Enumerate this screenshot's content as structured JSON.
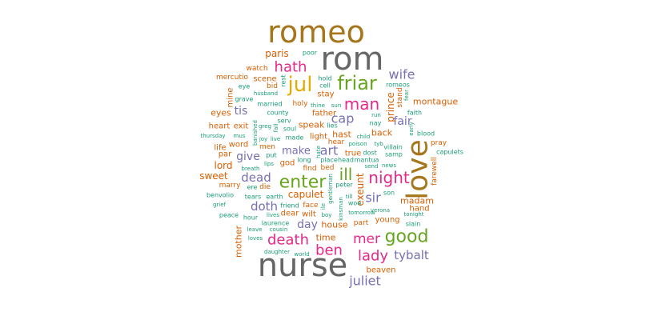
{
  "wordcloud": {
    "words": [
      {
        "text": "romeo",
        "color": "#a6761d"
      },
      {
        "text": "rom",
        "color": "#666666"
      },
      {
        "text": "nurse",
        "color": "#666666"
      },
      {
        "text": "love",
        "color": "#a6761d"
      },
      {
        "text": "jul",
        "color": "#e6ab02"
      },
      {
        "text": "friar",
        "color": "#66a61e"
      },
      {
        "text": "enter",
        "color": "#66a61e"
      },
      {
        "text": "good",
        "color": "#66a61e"
      },
      {
        "text": "death",
        "color": "#e7298a"
      },
      {
        "text": "man",
        "color": "#e7298a"
      },
      {
        "text": "hath",
        "color": "#e7298a"
      },
      {
        "text": "night",
        "color": "#e7298a"
      },
      {
        "text": "lady",
        "color": "#e7298a"
      },
      {
        "text": "ben",
        "color": "#e7298a"
      },
      {
        "text": "ill",
        "color": "#66a61e"
      },
      {
        "text": "mer",
        "color": "#e7298a"
      },
      {
        "text": "wife",
        "color": "#7570b3"
      },
      {
        "text": "juliet",
        "color": "#7570b3"
      },
      {
        "text": "tybalt",
        "color": "#7570b3"
      },
      {
        "text": "cap",
        "color": "#7570b3"
      },
      {
        "text": "art",
        "color": "#7570b3"
      },
      {
        "text": "sir",
        "color": "#7570b3"
      },
      {
        "text": "dead",
        "color": "#7570b3"
      },
      {
        "text": "give",
        "color": "#7570b3"
      },
      {
        "text": "doth",
        "color": "#7570b3"
      },
      {
        "text": "day",
        "color": "#7570b3"
      },
      {
        "text": "fair",
        "color": "#7570b3"
      },
      {
        "text": "tis",
        "color": "#7570b3"
      },
      {
        "text": "make",
        "color": "#7570b3"
      },
      {
        "text": "exeunt",
        "color": "#d95f02"
      },
      {
        "text": "prince",
        "color": "#d95f02"
      },
      {
        "text": "paris",
        "color": "#d95f02"
      },
      {
        "text": "capulet",
        "color": "#d95f02"
      },
      {
        "text": "montague",
        "color": "#d95f02"
      },
      {
        "text": "sweet",
        "color": "#d95f02"
      },
      {
        "text": "lord",
        "color": "#d95f02"
      },
      {
        "text": "eyes",
        "color": "#d95f02"
      },
      {
        "text": "scene",
        "color": "#d95f02"
      },
      {
        "text": "time",
        "color": "#d95f02"
      },
      {
        "text": "madam",
        "color": "#d95f02"
      },
      {
        "text": "mother",
        "color": "#d95f02"
      },
      {
        "text": "house",
        "color": "#d95f02"
      },
      {
        "text": "beaven",
        "color": "#d95f02"
      },
      {
        "text": "hand",
        "color": "#d95f02"
      },
      {
        "text": "young",
        "color": "#d95f02"
      },
      {
        "text": "back",
        "color": "#d95f02"
      },
      {
        "text": "true",
        "color": "#d95f02"
      },
      {
        "text": "hast",
        "color": "#d95f02"
      },
      {
        "text": "light",
        "color": "#d95f02"
      },
      {
        "text": "speak",
        "color": "#d95f02"
      },
      {
        "text": "father",
        "color": "#d95f02"
      },
      {
        "text": "stay",
        "color": "#d95f02"
      },
      {
        "text": "heart",
        "color": "#d95f02"
      },
      {
        "text": "exit",
        "color": "#d95f02"
      },
      {
        "text": "word",
        "color": "#d95f02"
      },
      {
        "text": "life",
        "color": "#d95f02"
      },
      {
        "text": "par",
        "color": "#d95f02"
      },
      {
        "text": "marry",
        "color": "#d95f02"
      },
      {
        "text": "watch",
        "color": "#d95f02"
      },
      {
        "text": "mercutio",
        "color": "#d95f02"
      },
      {
        "text": "mine",
        "color": "#d95f02"
      },
      {
        "text": "holy",
        "color": "#d95f02"
      },
      {
        "text": "bid",
        "color": "#d95f02"
      },
      {
        "text": "find",
        "color": "#d95f02"
      },
      {
        "text": "bed",
        "color": "#d95f02"
      },
      {
        "text": "god",
        "color": "#d95f02"
      },
      {
        "text": "die",
        "color": "#d95f02"
      },
      {
        "text": "wilt",
        "color": "#d95f02"
      },
      {
        "text": "face",
        "color": "#d95f02"
      },
      {
        "text": "dear",
        "color": "#d95f02"
      },
      {
        "text": "part",
        "color": "#d95f02"
      },
      {
        "text": "pray",
        "color": "#d95f02"
      },
      {
        "text": "farewell",
        "color": "#d95f02"
      },
      {
        "text": "stand",
        "color": "#d95f02"
      },
      {
        "text": "men",
        "color": "#d95f02"
      },
      {
        "text": "hear",
        "color": "#d95f02"
      },
      {
        "text": "poor",
        "color": "#1b9e77"
      },
      {
        "text": "rest",
        "color": "#1b9e77"
      },
      {
        "text": "hold",
        "color": "#1b9e77"
      },
      {
        "text": "cell",
        "color": "#1b9e77"
      },
      {
        "text": "romeos",
        "color": "#1b9e77"
      },
      {
        "text": "fear",
        "color": "#1b9e77"
      },
      {
        "text": "eye",
        "color": "#1b9e77"
      },
      {
        "text": "husband",
        "color": "#1b9e77"
      },
      {
        "text": "grave",
        "color": "#1b9e77"
      },
      {
        "text": "married",
        "color": "#1b9e77"
      },
      {
        "text": "thine",
        "color": "#1b9e77"
      },
      {
        "text": "sun",
        "color": "#1b9e77"
      },
      {
        "text": "county",
        "color": "#1b9e77"
      },
      {
        "text": "faith",
        "color": "#1b9e77"
      },
      {
        "text": "run",
        "color": "#1b9e77"
      },
      {
        "text": "nay",
        "color": "#1b9e77"
      },
      {
        "text": "serv",
        "color": "#1b9e77"
      },
      {
        "text": "greg",
        "color": "#1b9e77"
      },
      {
        "text": "fall",
        "color": "#1b9e77"
      },
      {
        "text": "soul",
        "color": "#1b9e77"
      },
      {
        "text": "banished",
        "color": "#1b9e77"
      },
      {
        "text": "lies",
        "color": "#1b9e77"
      },
      {
        "text": "early",
        "color": "#1b9e77"
      },
      {
        "text": "blood",
        "color": "#1b9e77"
      },
      {
        "text": "thursday",
        "color": "#1b9e77"
      },
      {
        "text": "mus",
        "color": "#1b9e77"
      },
      {
        "text": "joy",
        "color": "#1b9e77"
      },
      {
        "text": "live",
        "color": "#1b9e77"
      },
      {
        "text": "made",
        "color": "#1b9e77"
      },
      {
        "text": "hate",
        "color": "#1b9e77"
      },
      {
        "text": "child",
        "color": "#1b9e77"
      },
      {
        "text": "poison",
        "color": "#1b9e77"
      },
      {
        "text": "tyb",
        "color": "#1b9e77"
      },
      {
        "text": "villain",
        "color": "#1b9e77"
      },
      {
        "text": "capulets",
        "color": "#1b9e77"
      },
      {
        "text": "put",
        "color": "#1b9e77"
      },
      {
        "text": "long",
        "color": "#1b9e77"
      },
      {
        "text": "place",
        "color": "#1b9e77"
      },
      {
        "text": "head",
        "color": "#1b9e77"
      },
      {
        "text": "mantua",
        "color": "#1b9e77"
      },
      {
        "text": "dost",
        "color": "#1b9e77"
      },
      {
        "text": "samp",
        "color": "#1b9e77"
      },
      {
        "text": "breath",
        "color": "#1b9e77"
      },
      {
        "text": "lips",
        "color": "#1b9e77"
      },
      {
        "text": "send",
        "color": "#1b9e77"
      },
      {
        "text": "news",
        "color": "#1b9e77"
      },
      {
        "text": "peter",
        "color": "#1b9e77"
      },
      {
        "text": "ere",
        "color": "#1b9e77"
      },
      {
        "text": "benvolio",
        "color": "#1b9e77"
      },
      {
        "text": "tears",
        "color": "#1b9e77"
      },
      {
        "text": "earth",
        "color": "#1b9e77"
      },
      {
        "text": "gentleman",
        "color": "#1b9e77"
      },
      {
        "text": "son",
        "color": "#1b9e77"
      },
      {
        "text": "grief",
        "color": "#1b9e77"
      },
      {
        "text": "friend",
        "color": "#1b9e77"
      },
      {
        "text": "ile",
        "color": "#1b9e77"
      },
      {
        "text": "till",
        "color": "#1b9e77"
      },
      {
        "text": "woe",
        "color": "#1b9e77"
      },
      {
        "text": "verona",
        "color": "#1b9e77"
      },
      {
        "text": "peace",
        "color": "#1b9e77"
      },
      {
        "text": "hour",
        "color": "#1b9e77"
      },
      {
        "text": "lives",
        "color": "#1b9e77"
      },
      {
        "text": "boy",
        "color": "#1b9e77"
      },
      {
        "text": "kinsman",
        "color": "#1b9e77"
      },
      {
        "text": "tomorrow",
        "color": "#1b9e77"
      },
      {
        "text": "tonight",
        "color": "#1b9e77"
      },
      {
        "text": "laurence",
        "color": "#1b9e77"
      },
      {
        "text": "slain",
        "color": "#1b9e77"
      },
      {
        "text": "leave",
        "color": "#1b9e77"
      },
      {
        "text": "cousin",
        "color": "#1b9e77"
      },
      {
        "text": "loves",
        "color": "#1b9e77"
      },
      {
        "text": "daughter",
        "color": "#1b9e77"
      },
      {
        "text": "world",
        "color": "#1b9e77"
      }
    ]
  }
}
